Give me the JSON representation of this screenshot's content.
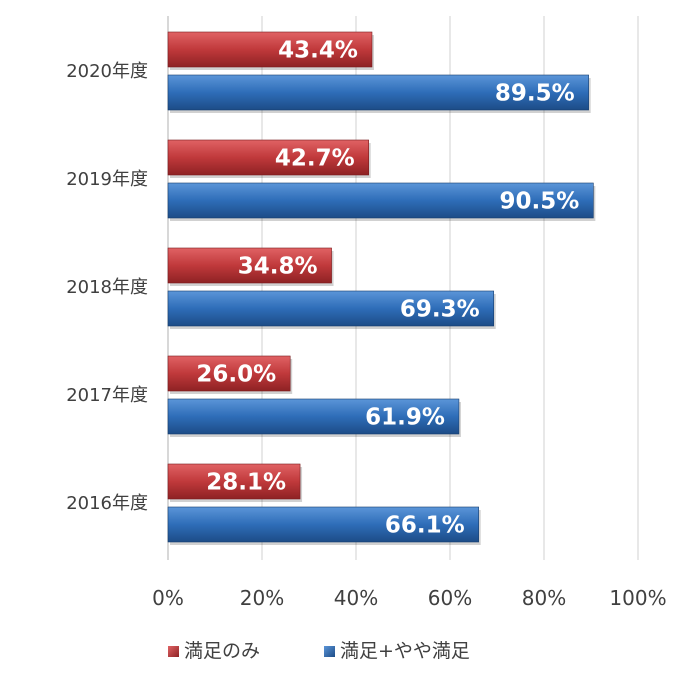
{
  "chart_data": {
    "type": "bar",
    "orientation": "horizontal",
    "categories": [
      "2020年度",
      "2019年度",
      "2018年度",
      "2017年度",
      "2016年度"
    ],
    "series": [
      {
        "name": "満足のみ",
        "values": [
          43.4,
          42.7,
          34.8,
          26.0,
          28.1
        ],
        "labels": [
          "43.4%",
          "42.7%",
          "34.8%",
          "26.0%",
          "28.1%"
        ],
        "color": "#C0393B"
      },
      {
        "name": "満足+やや満足",
        "values": [
          89.5,
          90.5,
          69.3,
          61.9,
          66.1
        ],
        "labels": [
          "89.5%",
          "90.5%",
          "69.3%",
          "61.9%",
          "66.1%"
        ],
        "color": "#2E6DB8"
      }
    ],
    "xlim": [
      0,
      100
    ],
    "xticks": [
      "0%",
      "20%",
      "40%",
      "60%",
      "80%",
      "100%"
    ],
    "grid": true,
    "legend": "bottom",
    "title": "",
    "xlabel": "",
    "ylabel": ""
  }
}
